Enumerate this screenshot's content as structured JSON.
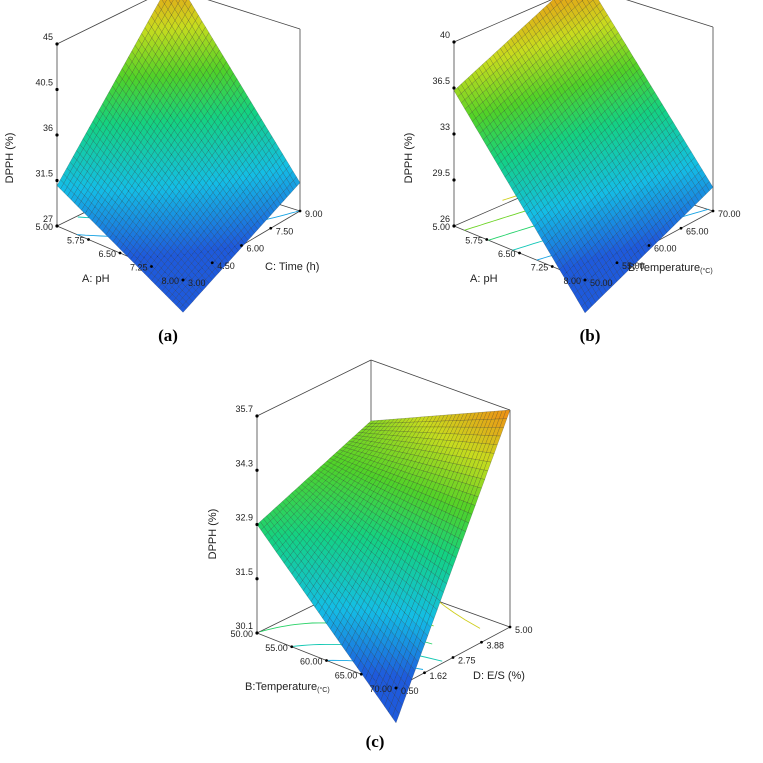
{
  "chart_data": [
    {
      "type": "surface3d",
      "panel": "a",
      "caption": "(a)",
      "zlabel": "DPPH (%)",
      "xlabel": "A: pH",
      "ylabel": "C: Time (h)",
      "x_ticks": [
        "5.00",
        "5.75",
        "6.50",
        "7.25",
        "8.00"
      ],
      "y_ticks": [
        "3.00",
        "4.50",
        "6.00",
        "7.50",
        "9.00"
      ],
      "z_ticks": [
        "27",
        "31.5",
        "36",
        "40.5",
        "45"
      ],
      "xlim": [
        5.0,
        8.0
      ],
      "ylim": [
        3.0,
        9.0
      ],
      "zlim": [
        27,
        45
      ],
      "corner_values": {
        "x_min_y_min": 31.0,
        "x_max_y_min": 23.8,
        "x_min_y_max": 45.0,
        "x_max_y_max": 29.8
      }
    },
    {
      "type": "surface3d",
      "panel": "b",
      "caption": "(b)",
      "zlabel": "DPPH (%)",
      "xlabel": "A: pH",
      "ylabel": "B:Temperature",
      "ylabel_unit": "(°C)",
      "x_ticks": [
        "5.00",
        "5.75",
        "6.50",
        "7.25",
        "8.00"
      ],
      "y_ticks": [
        "50.00",
        "55.00",
        "60.00",
        "65.00",
        "70.00"
      ],
      "z_ticks": [
        "26",
        "29.5",
        "33",
        "36.5",
        "40"
      ],
      "xlim": [
        5.0,
        8.0
      ],
      "ylim": [
        50.0,
        70.0
      ],
      "zlim": [
        26,
        40
      ],
      "corner_values": {
        "x_min_y_min": 36.3,
        "x_max_y_min": 23.5,
        "x_min_y_max": 40.0,
        "x_max_y_max": 27.8
      }
    },
    {
      "type": "surface3d",
      "panel": "c",
      "caption": "(c)",
      "zlabel": "DPPH (%)",
      "xlabel": "B:Temperature",
      "xlabel_unit": "(°C)",
      "ylabel": "D: E/S (%)",
      "x_ticks": [
        "50.00",
        "55.00",
        "60.00",
        "65.00",
        "70.00"
      ],
      "y_ticks": [
        "0.50",
        "1.62",
        "2.75",
        "3.88",
        "5.00"
      ],
      "z_ticks": [
        "30.1",
        "31.5",
        "32.9",
        "34.3",
        "35.7"
      ],
      "xlim": [
        50.0,
        70.0
      ],
      "ylim": [
        0.5,
        5.0
      ],
      "zlim": [
        30.1,
        35.7
      ],
      "corner_values": {
        "x_min_y_min": 32.9,
        "x_max_y_min": 29.2,
        "x_min_y_max": 34.0,
        "x_max_y_max": 35.7
      }
    }
  ]
}
